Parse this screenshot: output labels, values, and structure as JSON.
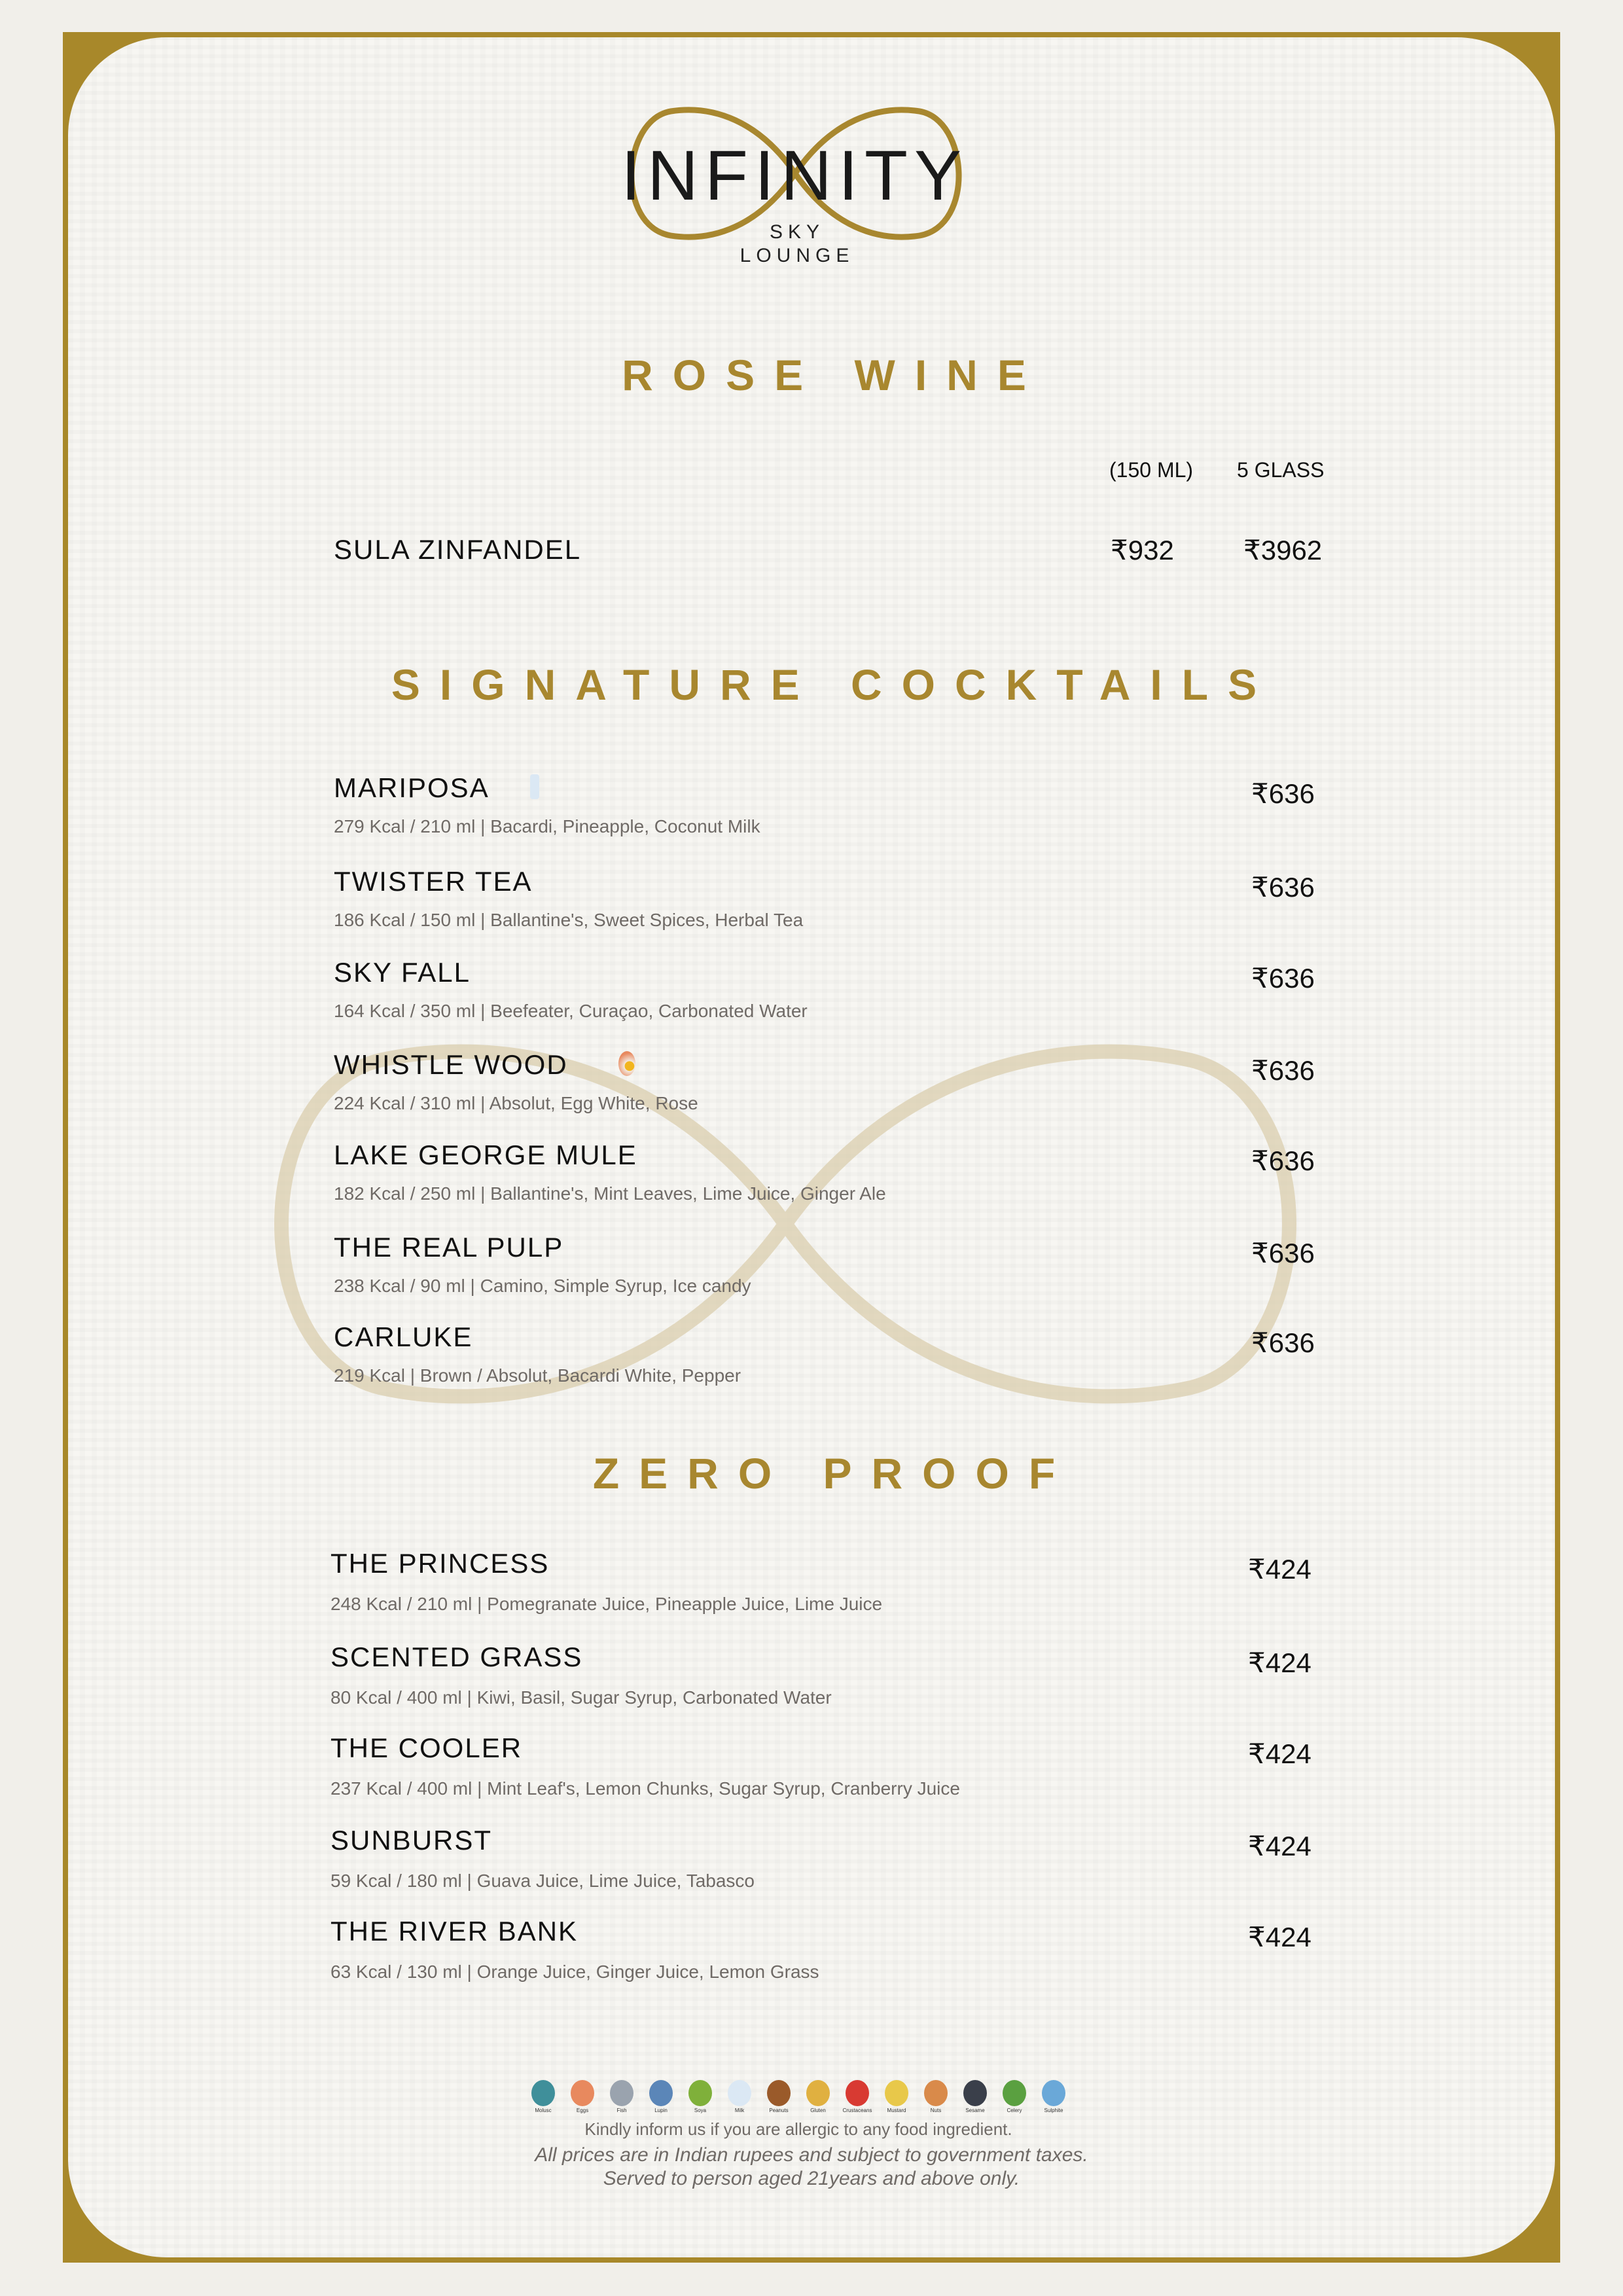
{
  "logo": {
    "title": "INFINITY",
    "line1": "SKY",
    "line2": "LOUNGE"
  },
  "colors": {
    "gold": "#a8872f",
    "text": "#111111",
    "muted": "#6f6a66"
  },
  "rose_wine": {
    "heading": "ROSE WINE",
    "col1": "(150 ML)",
    "col2": "5 GLASS",
    "items": [
      {
        "name": "SULA ZINFANDEL",
        "price1": "₹932",
        "price2": "₹3962"
      }
    ]
  },
  "signature": {
    "heading": "SIGNATURE COCKTAILS",
    "items": [
      {
        "name": "MARIPOSA",
        "desc": "279 Kcal / 210 ml | Bacardi, Pineapple, Coconut Milk",
        "price": "₹636",
        "icon": "milk-icon"
      },
      {
        "name": "TWISTER TEA",
        "desc": "186 Kcal / 150 ml | Ballantine's, Sweet Spices, Herbal Tea",
        "price": "₹636"
      },
      {
        "name": "SKY FALL",
        "desc": "164 Kcal / 350 ml | Beefeater, Curaçao, Carbonated Water",
        "price": "₹636"
      },
      {
        "name": "WHISTLE WOOD",
        "desc": "224 Kcal / 310 ml | Absolut, Egg White, Rose",
        "price": "₹636",
        "icon": "egg-icon"
      },
      {
        "name": "LAKE GEORGE MULE",
        "desc": "182 Kcal / 250 ml | Ballantine's, Mint Leaves, Lime Juice, Ginger Ale",
        "price": "₹636"
      },
      {
        "name": "THE REAL PULP",
        "desc": "238 Kcal / 90 ml | Camino, Simple Syrup, Ice candy",
        "price": "₹636"
      },
      {
        "name": "CARLUKE",
        "desc": "219 Kcal | Brown / Absolut, Bacardi White, Pepper",
        "price": "₹636"
      }
    ]
  },
  "zero_proof": {
    "heading": "ZERO PROOF",
    "items": [
      {
        "name": "THE PRINCESS",
        "desc": "248 Kcal / 210 ml | Pomegranate Juice, Pineapple Juice, Lime Juice",
        "price": "₹424"
      },
      {
        "name": "SCENTED GRASS",
        "desc": "80 Kcal / 400 ml | Kiwi, Basil, Sugar Syrup, Carbonated Water",
        "price": "₹424"
      },
      {
        "name": "THE COOLER",
        "desc": "237 Kcal / 400 ml | Mint Leaf's, Lemon Chunks, Sugar Syrup, Cranberry Juice",
        "price": "₹424"
      },
      {
        "name": "SUNBURST",
        "desc": "59 Kcal / 180 ml | Guava Juice, Lime Juice, Tabasco",
        "price": "₹424"
      },
      {
        "name": "THE RIVER BANK",
        "desc": "63 Kcal / 130 ml | Orange Juice, Ginger Juice, Lemon Grass",
        "price": "₹424"
      }
    ]
  },
  "allergens": [
    {
      "label": "Molusc",
      "color": "#3f8f9a"
    },
    {
      "label": "Eggs",
      "color": "#e8895e"
    },
    {
      "label": "Fish",
      "color": "#9aa3ae"
    },
    {
      "label": "Lupin",
      "color": "#5b86b8"
    },
    {
      "label": "Soya",
      "color": "#7fb03a"
    },
    {
      "label": "Milk",
      "color": "#dbe8f4"
    },
    {
      "label": "Peanuts",
      "color": "#9a5a2a"
    },
    {
      "label": "Gluten",
      "color": "#e0b040"
    },
    {
      "label": "Crustaceans",
      "color": "#d83a32"
    },
    {
      "label": "Mustard",
      "color": "#e8c84a"
    },
    {
      "label": "Nuts",
      "color": "#d98a4a"
    },
    {
      "label": "Sesame",
      "color": "#3a3f4a"
    },
    {
      "label": "Celery",
      "color": "#5aa040"
    },
    {
      "label": "Sulphite",
      "color": "#6aa8d8"
    }
  ],
  "footer": {
    "allergy_note": "Kindly inform us if you are allergic to any food ingredient.",
    "price_note": "All prices are in Indian rupees and subject to government taxes.",
    "age_note": "Served to person aged 21years and above only."
  }
}
